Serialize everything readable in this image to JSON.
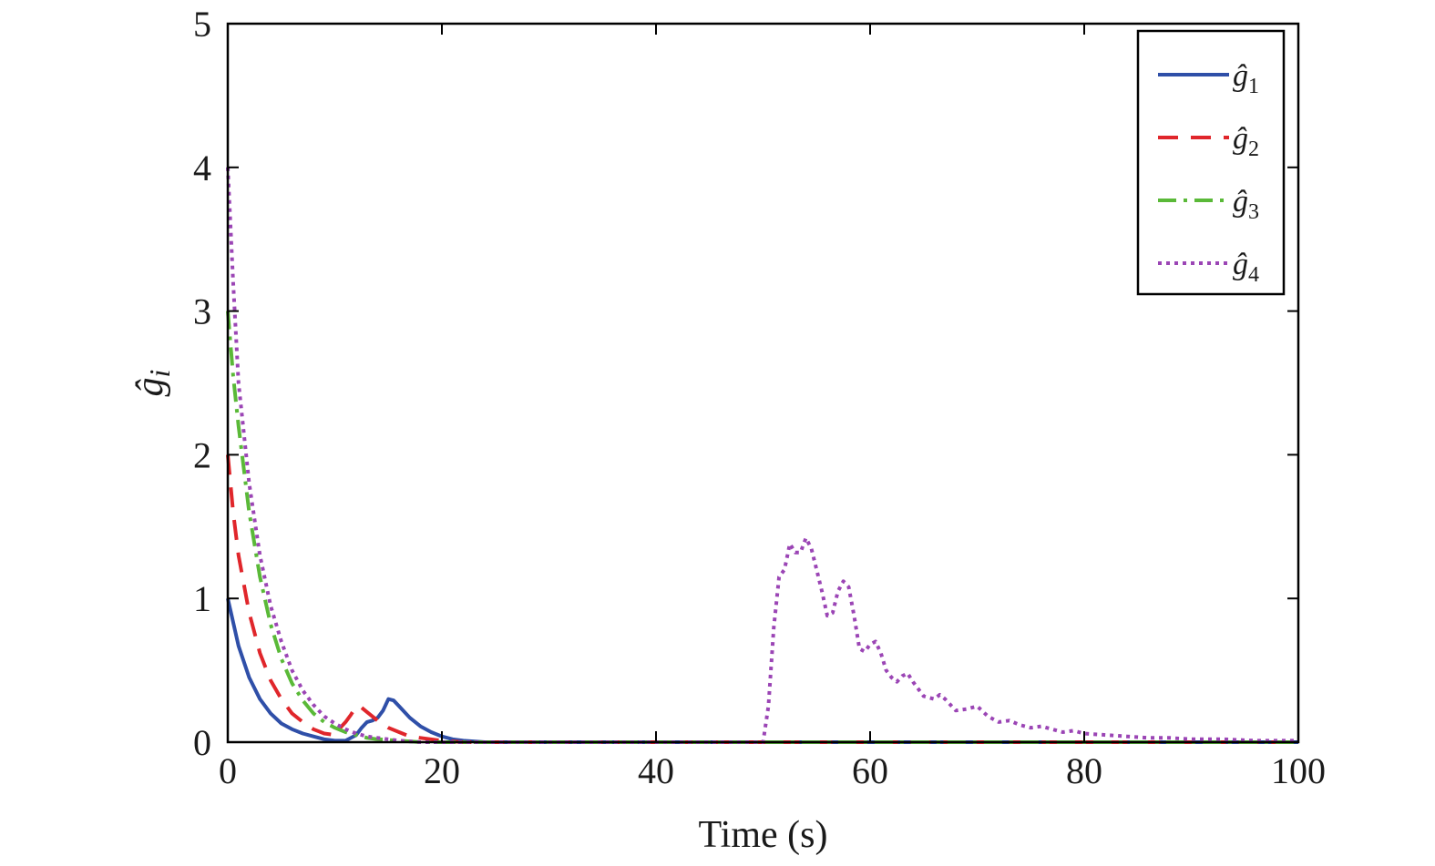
{
  "chart_data": {
    "type": "line",
    "xlabel": "Time (s)",
    "ylabel": "ĝ",
    "ylabel_subscript": "i",
    "xlim": [
      0,
      100
    ],
    "ylim": [
      0,
      5
    ],
    "xticks": [
      0,
      20,
      40,
      60,
      80,
      100
    ],
    "yticks": [
      0,
      1,
      2,
      3,
      4,
      5
    ],
    "grid": false,
    "legend_position": "top-right",
    "series": [
      {
        "name": "ĝ",
        "subscript": "1",
        "color": "#2f4fa8",
        "dash": "solid",
        "points": [
          [
            0,
            1.0
          ],
          [
            1,
            0.67
          ],
          [
            2,
            0.45
          ],
          [
            3,
            0.3
          ],
          [
            4,
            0.2
          ],
          [
            5,
            0.13
          ],
          [
            6,
            0.09
          ],
          [
            7,
            0.06
          ],
          [
            8,
            0.04
          ],
          [
            9,
            0.02
          ],
          [
            10,
            0.01
          ],
          [
            11,
            0.01
          ],
          [
            12,
            0.05
          ],
          [
            12.5,
            0.1
          ],
          [
            13,
            0.14
          ],
          [
            13.5,
            0.15
          ],
          [
            14,
            0.17
          ],
          [
            14.5,
            0.22
          ],
          [
            15,
            0.3
          ],
          [
            15.5,
            0.29
          ],
          [
            16,
            0.25
          ],
          [
            17,
            0.17
          ],
          [
            18,
            0.11
          ],
          [
            19,
            0.07
          ],
          [
            20,
            0.04
          ],
          [
            21,
            0.02
          ],
          [
            22,
            0.01
          ],
          [
            24,
            0.0
          ],
          [
            100,
            0.0
          ]
        ]
      },
      {
        "name": "ĝ",
        "subscript": "2",
        "color": "#e0262b",
        "dash": "long-dash",
        "points": [
          [
            0,
            2.0
          ],
          [
            0.5,
            1.6
          ],
          [
            1,
            1.3
          ],
          [
            2,
            0.9
          ],
          [
            3,
            0.62
          ],
          [
            4,
            0.43
          ],
          [
            5,
            0.3
          ],
          [
            6,
            0.2
          ],
          [
            7,
            0.14
          ],
          [
            8,
            0.09
          ],
          [
            9,
            0.06
          ],
          [
            10,
            0.05
          ],
          [
            10.5,
            0.1
          ],
          [
            11,
            0.14
          ],
          [
            11.5,
            0.19
          ],
          [
            12,
            0.25
          ],
          [
            12.5,
            0.24
          ],
          [
            13,
            0.21
          ],
          [
            14,
            0.15
          ],
          [
            15,
            0.1
          ],
          [
            16,
            0.07
          ],
          [
            17,
            0.04
          ],
          [
            18,
            0.03
          ],
          [
            20,
            0.01
          ],
          [
            22,
            0.0
          ],
          [
            100,
            0.0
          ]
        ]
      },
      {
        "name": "ĝ",
        "subscript": "3",
        "color": "#5ab938",
        "dash": "dash-dot",
        "points": [
          [
            0,
            3.0
          ],
          [
            0.5,
            2.55
          ],
          [
            1,
            2.2
          ],
          [
            2,
            1.6
          ],
          [
            3,
            1.15
          ],
          [
            4,
            0.82
          ],
          [
            5,
            0.58
          ],
          [
            6,
            0.41
          ],
          [
            7,
            0.29
          ],
          [
            8,
            0.2
          ],
          [
            9,
            0.14
          ],
          [
            10,
            0.1
          ],
          [
            11,
            0.07
          ],
          [
            12,
            0.05
          ],
          [
            13,
            0.03
          ],
          [
            14,
            0.02
          ],
          [
            16,
            0.01
          ],
          [
            18,
            0.0
          ],
          [
            100,
            0.0
          ]
        ]
      },
      {
        "name": "ĝ",
        "subscript": "4",
        "color": "#9b45b5",
        "dash": "dotted",
        "points": [
          [
            0,
            4.0
          ],
          [
            0.5,
            3.2
          ],
          [
            1,
            2.5
          ],
          [
            2,
            1.8
          ],
          [
            3,
            1.3
          ],
          [
            4,
            0.95
          ],
          [
            5,
            0.7
          ],
          [
            6,
            0.5
          ],
          [
            7,
            0.36
          ],
          [
            8,
            0.26
          ],
          [
            9,
            0.18
          ],
          [
            10,
            0.13
          ],
          [
            11,
            0.09
          ],
          [
            12,
            0.06
          ],
          [
            13,
            0.04
          ],
          [
            14,
            0.03
          ],
          [
            16,
            0.01
          ],
          [
            18,
            0.0
          ],
          [
            50,
            0.0
          ],
          [
            50.5,
            0.25
          ],
          [
            51,
            0.8
          ],
          [
            51.5,
            1.15
          ],
          [
            52,
            1.2
          ],
          [
            52.5,
            1.38
          ],
          [
            53,
            1.32
          ],
          [
            53.5,
            1.32
          ],
          [
            54,
            1.42
          ],
          [
            54.5,
            1.35
          ],
          [
            55,
            1.2
          ],
          [
            55.5,
            1.05
          ],
          [
            56,
            0.88
          ],
          [
            56.5,
            0.9
          ],
          [
            57,
            1.05
          ],
          [
            57.5,
            1.12
          ],
          [
            58,
            1.08
          ],
          [
            58.5,
            0.88
          ],
          [
            59,
            0.65
          ],
          [
            59.5,
            0.63
          ],
          [
            60,
            0.68
          ],
          [
            60.5,
            0.7
          ],
          [
            61,
            0.62
          ],
          [
            61.5,
            0.5
          ],
          [
            62,
            0.45
          ],
          [
            62.5,
            0.42
          ],
          [
            63,
            0.46
          ],
          [
            63.5,
            0.48
          ],
          [
            64,
            0.42
          ],
          [
            65,
            0.32
          ],
          [
            66,
            0.3
          ],
          [
            66.5,
            0.33
          ],
          [
            67,
            0.3
          ],
          [
            68,
            0.22
          ],
          [
            69,
            0.23
          ],
          [
            70,
            0.25
          ],
          [
            71,
            0.18
          ],
          [
            72,
            0.14
          ],
          [
            73,
            0.15
          ],
          [
            74,
            0.12
          ],
          [
            75,
            0.1
          ],
          [
            76,
            0.11
          ],
          [
            77,
            0.09
          ],
          [
            78,
            0.07
          ],
          [
            79,
            0.08
          ],
          [
            80,
            0.06
          ],
          [
            82,
            0.05
          ],
          [
            84,
            0.04
          ],
          [
            86,
            0.03
          ],
          [
            88,
            0.03
          ],
          [
            90,
            0.02
          ],
          [
            93,
            0.02
          ],
          [
            96,
            0.01
          ],
          [
            100,
            0.01
          ]
        ]
      }
    ]
  }
}
